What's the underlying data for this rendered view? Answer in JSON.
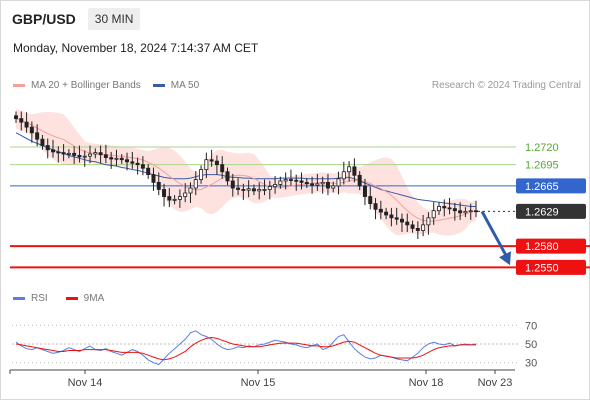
{
  "header": {
    "symbol": "GBP/USD",
    "interval": "30 MIN",
    "datetime": "Monday, November 18, 2024 7:14:37 AM CET"
  },
  "legend": {
    "ma20_label": "MA 20 + Bollinger Bands",
    "ma50_label": "MA 50",
    "credit": "Research © 2024 Trading Central",
    "rsi_label": "RSI",
    "rsi_ma_label": "9MA"
  },
  "colors": {
    "ma20": "#f4a09a",
    "ma50": "#3a5ba8",
    "bollinger_fill": "#fde2e0",
    "resistance": "#a9d68a",
    "pivot": "#3366cc",
    "support": "#ee1111",
    "last": "#333333",
    "arrow": "#2e5da8",
    "rsi": "#5b7fe0",
    "rsi_ma": "#ee1111"
  },
  "chart_data": {
    "type": "candlestick",
    "price_levels": [
      {
        "name": "resistance-2",
        "value": 1.272,
        "label": "1.2720",
        "style": "resistance"
      },
      {
        "name": "resistance-1",
        "value": 1.2695,
        "label": "1.2695",
        "style": "resistance"
      },
      {
        "name": "pivot",
        "value": 1.2665,
        "label": "1.2665",
        "style": "pivot"
      },
      {
        "name": "last-price",
        "value": 1.2629,
        "label": "1.2629",
        "style": "last"
      },
      {
        "name": "support-1",
        "value": 1.258,
        "label": "1.2580",
        "style": "support"
      },
      {
        "name": "support-2",
        "value": 1.255,
        "label": "1.2550",
        "style": "support"
      }
    ],
    "x_ticks": [
      "Nov 14",
      "Nov 15",
      "Nov 18",
      "Nov 23"
    ],
    "rsi_ticks": [
      70,
      50,
      30
    ],
    "rsi_range": [
      20,
      80
    ],
    "price_range": [
      1.2535,
      1.2775
    ],
    "close_series": [
      1.276,
      1.2755,
      1.2748,
      1.274,
      1.2731,
      1.2722,
      1.2716,
      1.2713,
      1.2712,
      1.271,
      1.2711,
      1.2708,
      1.2706,
      1.2707,
      1.271,
      1.2712,
      1.2709,
      1.2705,
      1.2703,
      1.2704,
      1.2702,
      1.2699,
      1.2697,
      1.2695,
      1.269,
      1.2681,
      1.267,
      1.266,
      1.265,
      1.2645,
      1.2646,
      1.265,
      1.2655,
      1.2662,
      1.2674,
      1.2688,
      1.2702,
      1.27,
      1.2695,
      1.2685,
      1.2672,
      1.2662,
      1.266,
      1.2659,
      1.2661,
      1.2658,
      1.266,
      1.266,
      1.2664,
      1.2667,
      1.2672,
      1.2674,
      1.2673,
      1.2672,
      1.267,
      1.2668,
      1.2666,
      1.2668,
      1.267,
      1.2662,
      1.2665,
      1.2675,
      1.2685,
      1.2692,
      1.268,
      1.2665,
      1.265,
      1.264,
      1.2632,
      1.2628,
      1.2624,
      1.262,
      1.2618,
      1.2614,
      1.261,
      1.2605,
      1.2602,
      1.261,
      1.262,
      1.263,
      1.2636,
      1.2634,
      1.2633,
      1.263,
      1.2627,
      1.2629,
      1.263,
      1.2629
    ],
    "ma50_series": [
      1.274,
      1.2736,
      1.2732,
      1.2728,
      1.2725,
      1.2722,
      1.2719,
      1.2716,
      1.2713,
      1.2711,
      1.2708,
      1.2706,
      1.2704,
      1.2702,
      1.27,
      1.2699,
      1.2697,
      1.2695,
      1.2694,
      1.2693,
      1.2691,
      1.269,
      1.2688,
      1.2687,
      1.2685,
      1.2683,
      1.2681,
      1.2679,
      1.2677,
      1.2676,
      1.2675,
      1.2675,
      1.2675,
      1.2676,
      1.2678,
      1.268,
      1.2681,
      1.2681,
      1.2681,
      1.268,
      1.2678,
      1.2677,
      1.2677,
      1.2676,
      1.2676,
      1.2675,
      1.2675,
      1.2675,
      1.2675,
      1.2675,
      1.2676,
      1.2676,
      1.2676,
      1.2676,
      1.2676,
      1.2675,
      1.2675,
      1.2675,
      1.2675,
      1.2675,
      1.2675,
      1.2676,
      1.2677,
      1.2677,
      1.2675,
      1.2672,
      1.2669,
      1.2666,
      1.2663,
      1.266,
      1.2658,
      1.2656,
      1.2654,
      1.2652,
      1.265,
      1.2648,
      1.2646,
      1.2645,
      1.2644,
      1.2643,
      1.2642,
      1.2641,
      1.264,
      1.2639,
      1.2638,
      1.2637,
      1.2636,
      1.2636
    ],
    "rsi_series": [
      52,
      48,
      45,
      44,
      46,
      44,
      42,
      40,
      41,
      43,
      46,
      44,
      42,
      45,
      48,
      44,
      43,
      45,
      42,
      40,
      38,
      41,
      44,
      42,
      38,
      33,
      30,
      28,
      34,
      40,
      45,
      50,
      55,
      62,
      64,
      60,
      58,
      55,
      50,
      46,
      44,
      45,
      47,
      46,
      48,
      47,
      49,
      50,
      52,
      54,
      53,
      52,
      50,
      49,
      47,
      46,
      48,
      50,
      44,
      46,
      52,
      58,
      60,
      52,
      45,
      40,
      36,
      34,
      35,
      38,
      37,
      36,
      34,
      33,
      32,
      36,
      40,
      46,
      50,
      52,
      50,
      49,
      51,
      48,
      49,
      50,
      49,
      50
    ],
    "rsi_ma_series": [
      50,
      49,
      48,
      47,
      46,
      45,
      44,
      43,
      42,
      42,
      43,
      43,
      43,
      44,
      44,
      44,
      44,
      44,
      43,
      42,
      41,
      41,
      41,
      41,
      40,
      38,
      36,
      34,
      33,
      34,
      36,
      39,
      42,
      47,
      51,
      54,
      56,
      57,
      56,
      54,
      52,
      50,
      49,
      48,
      47,
      47,
      47,
      48,
      49,
      50,
      51,
      51,
      51,
      51,
      50,
      49,
      48,
      48,
      47,
      47,
      48,
      50,
      52,
      53,
      52,
      49,
      46,
      43,
      40,
      38,
      37,
      36,
      35,
      35,
      35,
      35,
      36,
      38,
      41,
      44,
      46,
      47,
      48,
      48,
      49,
      49,
      49,
      49
    ]
  }
}
